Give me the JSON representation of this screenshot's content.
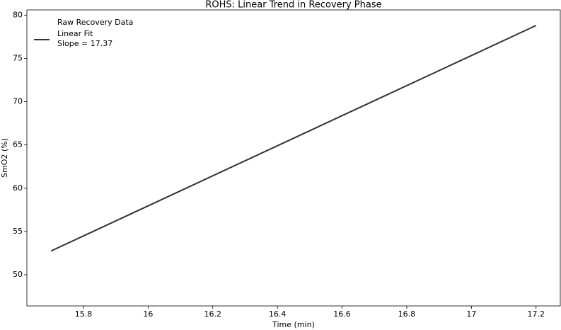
{
  "chart_data": {
    "type": "line",
    "title": "ROHS: Linear Trend in Recovery Phase",
    "x_label": "Time (min)",
    "y_label": "SmO2 (%)",
    "series": [
      {
        "name": "Raw Recovery Data",
        "color": "#333333",
        "x": [
          15.7,
          17.2
        ],
        "values": [
          52.75,
          78.8
        ]
      },
      {
        "name": "Linear Fit",
        "color": "#333333",
        "x": [
          15.7,
          17.2
        ],
        "values": [
          52.75,
          78.8
        ]
      }
    ],
    "annotation": "Slope = 17.37",
    "xlim": [
      15.625,
      17.275
    ],
    "xticks": [
      15.8,
      16.0,
      16.2,
      16.4,
      16.6,
      16.8,
      17.0,
      17.2
    ],
    "ylim": [
      46.4,
      80.6
    ],
    "yticks": [
      50,
      55,
      60,
      65,
      70,
      75,
      80
    ],
    "grid": false,
    "legend": "upper left"
  }
}
